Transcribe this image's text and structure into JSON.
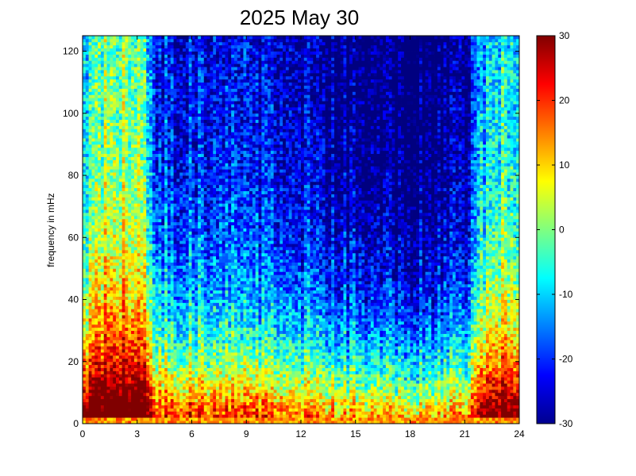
{
  "chart_data": {
    "type": "heatmap",
    "title": "2025 May 30",
    "xlabel": "",
    "ylabel": "frequency in mHz",
    "x_range": [
      0,
      24
    ],
    "y_range": [
      0,
      125
    ],
    "x_ticks": [
      0,
      3,
      6,
      9,
      12,
      15,
      18,
      21,
      24
    ],
    "y_ticks": [
      0,
      20,
      40,
      60,
      80,
      100,
      120
    ],
    "colorbar": {
      "colormap": "jet",
      "range": [
        -30,
        30
      ],
      "ticks": [
        -30,
        -20,
        -10,
        0,
        10,
        20,
        30
      ]
    },
    "grid": false,
    "value_model": {
      "description_hours": [
        0,
        24
      ],
      "baseline_profile": [
        {
          "x": 0.0,
          "v": -2
        },
        {
          "x": 0.5,
          "v": 6
        },
        {
          "x": 2.0,
          "v": 10
        },
        {
          "x": 3.5,
          "v": 4
        },
        {
          "x": 4.0,
          "v": -12
        },
        {
          "x": 6.0,
          "v": -13
        },
        {
          "x": 9.0,
          "v": -15
        },
        {
          "x": 12.0,
          "v": -17
        },
        {
          "x": 15.0,
          "v": -22
        },
        {
          "x": 18.0,
          "v": -25
        },
        {
          "x": 20.0,
          "v": -22
        },
        {
          "x": 21.3,
          "v": -18
        },
        {
          "x": 21.6,
          "v": -6
        },
        {
          "x": 23.0,
          "v": 2
        },
        {
          "x": 24.0,
          "v": 0
        }
      ]
    }
  },
  "colors": {
    "background": "#ffffff",
    "axis": "#000000"
  }
}
